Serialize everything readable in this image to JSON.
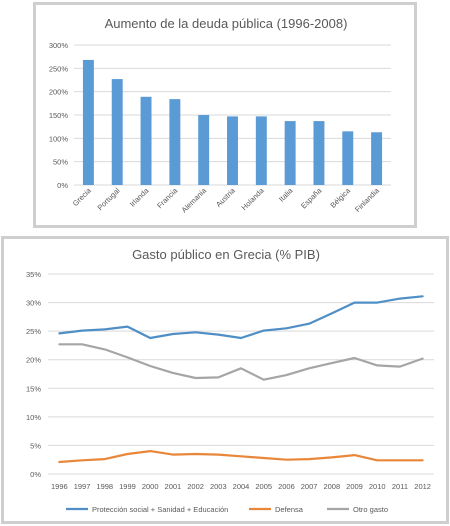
{
  "chart_data": [
    {
      "type": "bar",
      "title": "Aumento de la deuda pública (1996-2008)",
      "categories": [
        "Grecia",
        "Portugal",
        "Irlanda",
        "Francia",
        "Alemania",
        "Austria",
        "Holanda",
        "Italia",
        "España",
        "Bélgica",
        "Finlandia"
      ],
      "values": [
        268,
        227,
        189,
        184,
        150,
        147,
        147,
        137,
        137,
        115,
        113
      ],
      "y_ticks": [
        "0%",
        "50%",
        "100%",
        "150%",
        "200%",
        "250%",
        "300%"
      ],
      "ylim": [
        0,
        300
      ],
      "grid": true,
      "color": "#5b9bd5"
    },
    {
      "type": "line",
      "title": "Gasto público en Grecia (% PIB)",
      "x": [
        "1996",
        "1997",
        "1998",
        "1999",
        "2000",
        "2001",
        "2002",
        "2003",
        "2004",
        "2005",
        "2006",
        "2007",
        "2008",
        "2009",
        "2010",
        "2011",
        "2012"
      ],
      "y_ticks": [
        "0%",
        "5%",
        "10%",
        "15%",
        "20%",
        "25%",
        "30%",
        "35%"
      ],
      "ylim": [
        0,
        35
      ],
      "grid": true,
      "legend_position": "bottom",
      "series": [
        {
          "name": "Protección social + Sanidad + Educación",
          "color": "#4f8fc6",
          "values": [
            24.6,
            25.1,
            25.3,
            25.8,
            23.8,
            24.5,
            24.8,
            24.4,
            23.8,
            25.1,
            25.5,
            26.3,
            28.1,
            30.0,
            30.0,
            30.7,
            31.1
          ]
        },
        {
          "name": "Defensa",
          "color": "#e8873a",
          "values": [
            2.1,
            2.4,
            2.6,
            3.5,
            4.0,
            3.4,
            3.5,
            3.4,
            3.1,
            2.8,
            2.5,
            2.6,
            2.9,
            3.3,
            2.4,
            2.4,
            2.4
          ]
        },
        {
          "name": "Otro gasto",
          "color": "#a5a5a5",
          "values": [
            22.7,
            22.7,
            21.8,
            20.4,
            18.9,
            17.7,
            16.8,
            16.9,
            18.5,
            16.5,
            17.3,
            18.5,
            19.4,
            20.3,
            19.0,
            18.8,
            20.2
          ]
        }
      ]
    }
  ]
}
